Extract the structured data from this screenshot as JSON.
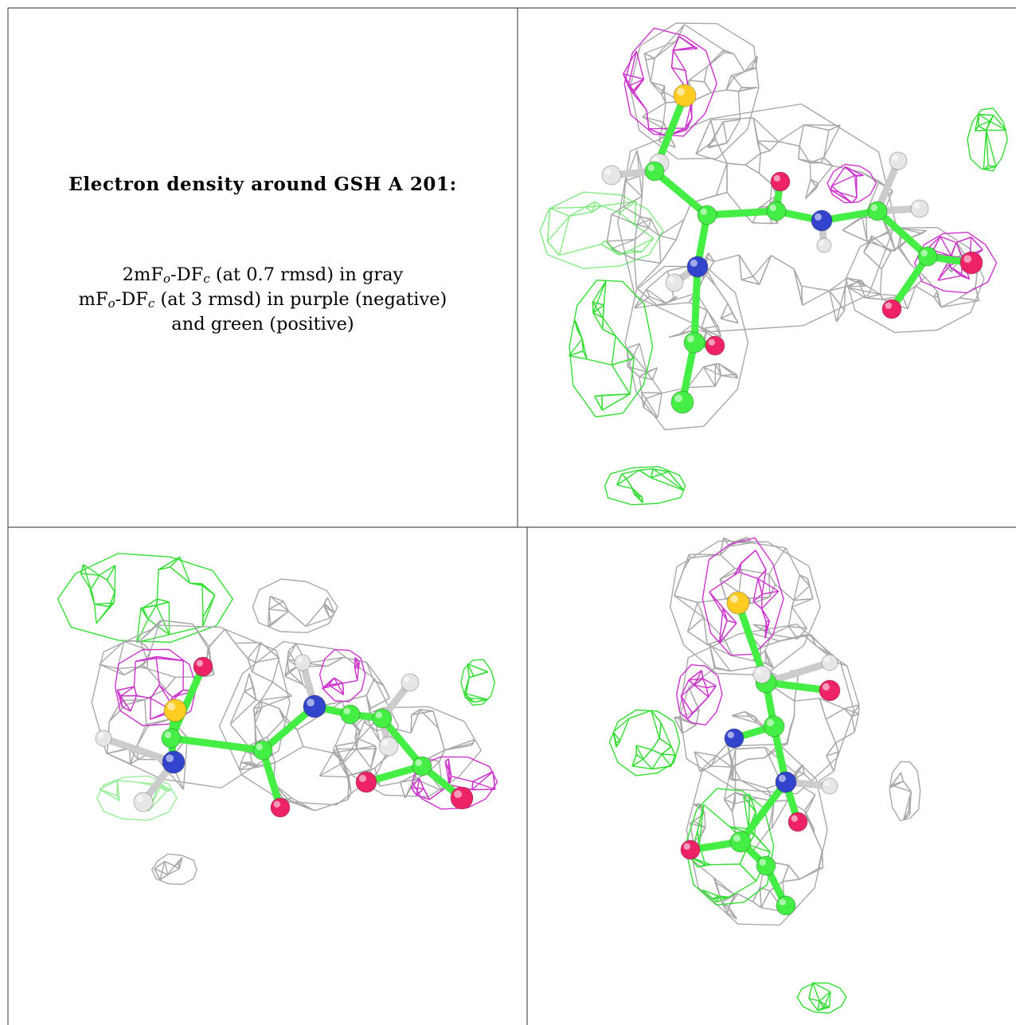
{
  "caption": {
    "title": "Electron density around GSH A 201:",
    "line1_prefix": "2mF",
    "line1_sub1": "o",
    "line1_mid": "-DF",
    "line1_sub2": "c",
    "line1_suffix": " (at 0.7 rmsd) in gray",
    "line2_prefix": "mF",
    "line2_sub1": "o",
    "line2_mid": "-DF",
    "line2_sub2": "c",
    "line2_suffix": " (at 3 rmsd) in purple (negative)",
    "line3": "and green (positive)"
  },
  "colors": {
    "map_2fofc": "#a8a8a8",
    "map_negative": "#cc33cc",
    "map_positive": "#33dd33",
    "carbon": "#44ee44",
    "nitrogen": "#3344cc",
    "oxygen": "#ee2266",
    "sulfur": "#ffcc22",
    "hydrogen": "#e6e6e6",
    "grid_line": "#555555"
  },
  "views": [
    {
      "name": "view-top-right"
    },
    {
      "name": "view-bottom-left"
    },
    {
      "name": "view-bottom-right"
    }
  ]
}
